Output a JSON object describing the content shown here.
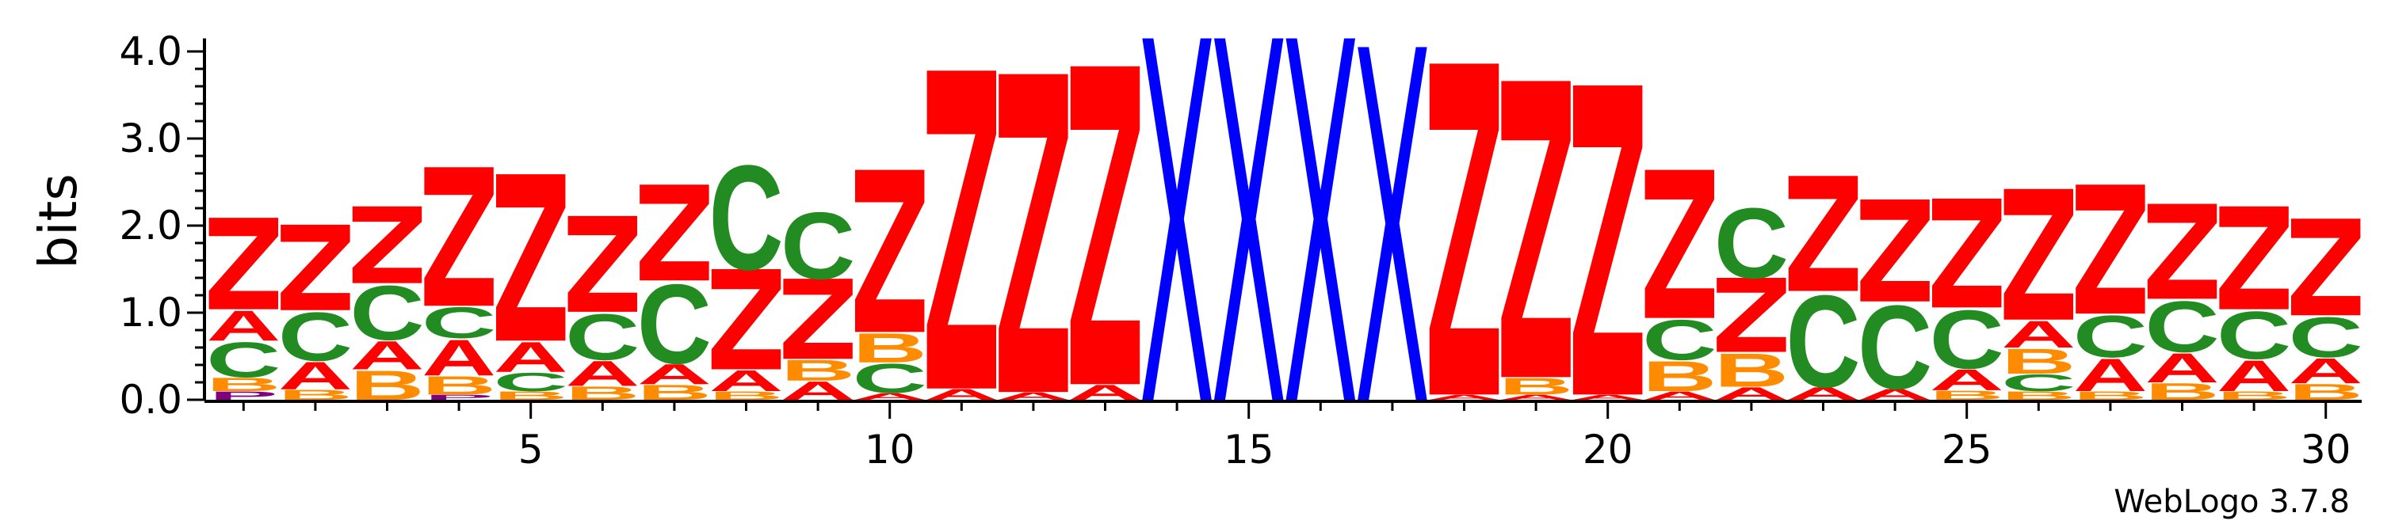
{
  "chart_data": {
    "type": "sequence-logo",
    "ylabel": "bits",
    "ylim": [
      0,
      4.2
    ],
    "yticks": [
      0,
      1,
      2,
      3,
      4
    ],
    "ytick_labels": [
      "0.0",
      "1.0",
      "2.0",
      "3.0",
      "4.0"
    ],
    "xlim": [
      0.5,
      30.5
    ],
    "xticks_labeled": [
      5,
      10,
      15,
      20,
      25,
      30
    ],
    "credit": "WebLogo 3.7.8",
    "colors": {
      "Z": "#ff0000",
      "X": "#0000ff",
      "C": "#228b22",
      "A": "#ff0000",
      "B": "#ff8c00",
      "P": "#800080"
    },
    "positions": [
      {
        "pos": 1,
        "stack": [
          [
            "P",
            0.1
          ],
          [
            "B",
            0.16
          ],
          [
            "C",
            0.42
          ],
          [
            "A",
            0.36
          ],
          [
            "Z",
            1.05
          ]
        ]
      },
      {
        "pos": 2,
        "stack": [
          [
            "B",
            0.12
          ],
          [
            "A",
            0.33
          ],
          [
            "C",
            0.58
          ],
          [
            "Z",
            0.98
          ]
        ]
      },
      {
        "pos": 3,
        "stack": [
          [
            "B",
            0.35
          ],
          [
            "A",
            0.34
          ],
          [
            "C",
            0.65
          ],
          [
            "Z",
            0.88
          ]
        ]
      },
      {
        "pos": 4,
        "stack": [
          [
            "P",
            0.06
          ],
          [
            "B",
            0.22
          ],
          [
            "A",
            0.43
          ],
          [
            "C",
            0.37
          ],
          [
            "Z",
            1.59
          ]
        ]
      },
      {
        "pos": 5,
        "stack": [
          [
            "B",
            0.1
          ],
          [
            "C",
            0.22
          ],
          [
            "A",
            0.36
          ],
          [
            "Z",
            1.91
          ]
        ]
      },
      {
        "pos": 6,
        "stack": [
          [
            "B",
            0.16
          ],
          [
            "A",
            0.3
          ],
          [
            "C",
            0.55
          ],
          [
            "Z",
            1.1
          ]
        ]
      },
      {
        "pos": 7,
        "stack": [
          [
            "B",
            0.18
          ],
          [
            "A",
            0.24
          ],
          [
            "C",
            0.95
          ],
          [
            "Z",
            1.1
          ]
        ]
      },
      {
        "pos": 8,
        "stack": [
          [
            "B",
            0.1
          ],
          [
            "A",
            0.25
          ],
          [
            "Z",
            1.15
          ],
          [
            "C",
            1.25
          ]
        ]
      },
      {
        "pos": 9,
        "stack": [
          [
            "A",
            0.22
          ],
          [
            "B",
            0.25
          ],
          [
            "Z",
            0.92
          ],
          [
            "C",
            0.8
          ]
        ]
      },
      {
        "pos": 10,
        "stack": [
          [
            "A",
            0.08
          ],
          [
            "C",
            0.35
          ],
          [
            "B",
            0.35
          ],
          [
            "Z",
            1.86
          ]
        ]
      },
      {
        "pos": 11,
        "stack": [
          [
            "A",
            0.13
          ],
          [
            "Z",
            3.65
          ]
        ]
      },
      {
        "pos": 12,
        "stack": [
          [
            "A",
            0.09
          ],
          [
            "Z",
            3.65
          ]
        ]
      },
      {
        "pos": 13,
        "stack": [
          [
            "A",
            0.18
          ],
          [
            "Z",
            3.65
          ]
        ]
      },
      {
        "pos": 14,
        "stack": [
          [
            "X",
            4.15
          ]
        ]
      },
      {
        "pos": 15,
        "stack": [
          [
            "X",
            4.15
          ]
        ]
      },
      {
        "pos": 16,
        "stack": [
          [
            "X",
            4.15
          ]
        ]
      },
      {
        "pos": 17,
        "stack": [
          [
            "X",
            4.05
          ]
        ]
      },
      {
        "pos": 18,
        "stack": [
          [
            "A",
            0.06
          ],
          [
            "Z",
            3.8
          ]
        ]
      },
      {
        "pos": 19,
        "stack": [
          [
            "A",
            0.06
          ],
          [
            "B",
            0.2
          ],
          [
            "Z",
            3.4
          ]
        ]
      },
      {
        "pos": 20,
        "stack": [
          [
            "A",
            0.06
          ],
          [
            "Z",
            3.55
          ]
        ]
      },
      {
        "pos": 21,
        "stack": [
          [
            "A",
            0.1
          ],
          [
            "B",
            0.36
          ],
          [
            "C",
            0.48
          ],
          [
            "Z",
            1.7
          ]
        ]
      },
      {
        "pos": 22,
        "stack": [
          [
            "A",
            0.15
          ],
          [
            "B",
            0.4
          ],
          [
            "Z",
            0.85
          ],
          [
            "C",
            0.84
          ]
        ]
      },
      {
        "pos": 23,
        "stack": [
          [
            "A",
            0.15
          ],
          [
            "C",
            1.1
          ],
          [
            "Z",
            1.32
          ]
        ]
      },
      {
        "pos": 24,
        "stack": [
          [
            "A",
            0.13
          ],
          [
            "C",
            1.0
          ],
          [
            "Z",
            1.17
          ]
        ]
      },
      {
        "pos": 25,
        "stack": [
          [
            "B",
            0.11
          ],
          [
            "A",
            0.25
          ],
          [
            "C",
            0.7
          ],
          [
            "Z",
            1.25
          ]
        ]
      },
      {
        "pos": 26,
        "stack": [
          [
            "B",
            0.1
          ],
          [
            "C",
            0.2
          ],
          [
            "B",
            0.3
          ],
          [
            "A",
            0.32
          ],
          [
            "Z",
            1.5
          ]
        ]
      },
      {
        "pos": 27,
        "stack": [
          [
            "B",
            0.1
          ],
          [
            "A",
            0.39
          ],
          [
            "C",
            0.5
          ],
          [
            "Z",
            1.48
          ]
        ]
      },
      {
        "pos": 28,
        "stack": [
          [
            "B",
            0.2
          ],
          [
            "A",
            0.35
          ],
          [
            "C",
            0.61
          ],
          [
            "Z",
            1.09
          ]
        ]
      },
      {
        "pos": 29,
        "stack": [
          [
            "B",
            0.1
          ],
          [
            "A",
            0.37
          ],
          [
            "C",
            0.57
          ],
          [
            "Z",
            1.18
          ]
        ]
      },
      {
        "pos": 30,
        "stack": [
          [
            "B",
            0.19
          ],
          [
            "A",
            0.3
          ],
          [
            "C",
            0.48
          ],
          [
            "Z",
            1.11
          ]
        ]
      }
    ]
  }
}
